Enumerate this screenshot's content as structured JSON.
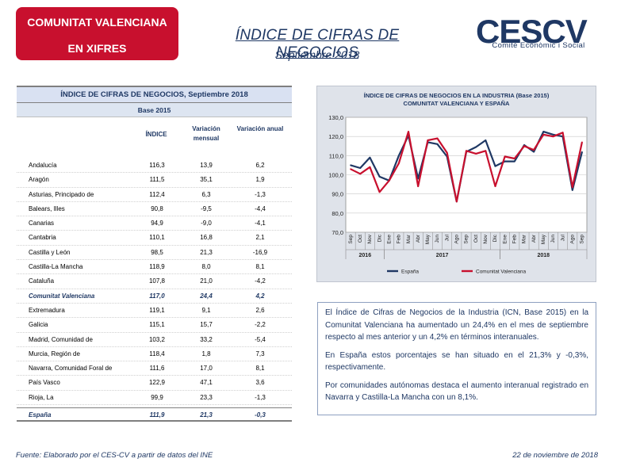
{
  "header": {
    "badge_line1": "COMUNITAT VALENCIANA",
    "badge_line2": "EN XIFRES",
    "title": "ÍNDICE DE CIFRAS DE NEGOCIOS",
    "subtitle": "Septiembre 2018",
    "logo_text": "CESCV",
    "logo_subtitle": "Comitè Econòmic i Social",
    "brand_blue": "#1f3864",
    "brand_red": "#c8102e"
  },
  "table": {
    "title": "ÍNDICE DE CIFRAS DE NEGOCIOS, Septiembre 2018",
    "base": "Base 2015",
    "col_index": "ÍNDICE",
    "col_monthly": "Variación mensual",
    "col_annual": "Variación anual",
    "rows": [
      {
        "name": "Andalucía",
        "index": "116,3",
        "monthly": "13,9",
        "annual": "6,2"
      },
      {
        "name": "Aragón",
        "index": "111,5",
        "monthly": "35,1",
        "annual": "1,9"
      },
      {
        "name": "Asturias, Principado de",
        "index": "112,4",
        "monthly": "6,3",
        "annual": "-1,3"
      },
      {
        "name": "Balears, Illes",
        "index": "90,8",
        "monthly": "-9,5",
        "annual": "-4,4"
      },
      {
        "name": "Canarias",
        "index": "94,9",
        "monthly": "-9,0",
        "annual": "-4,1"
      },
      {
        "name": "Cantabria",
        "index": "110,1",
        "monthly": "16,8",
        "annual": "2,1"
      },
      {
        "name": "Castilla y León",
        "index": "98,5",
        "monthly": "21,3",
        "annual": "-16,9"
      },
      {
        "name": "Castilla-La Mancha",
        "index": "118,9",
        "monthly": "8,0",
        "annual": "8,1"
      },
      {
        "name": "Cataluña",
        "index": "107,8",
        "monthly": "21,0",
        "annual": "-4,2"
      },
      {
        "name": "Comunitat Valenciana",
        "index": "117,0",
        "monthly": "24,4",
        "annual": "4,2"
      },
      {
        "name": "Extremadura",
        "index": "119,1",
        "monthly": "9,1",
        "annual": "2,6"
      },
      {
        "name": "Galicia",
        "index": "115,1",
        "monthly": "15,7",
        "annual": "-2,2"
      },
      {
        "name": "Madrid, Comunidad de",
        "index": "103,2",
        "monthly": "33,2",
        "annual": "-5,4"
      },
      {
        "name": "Murcia, Región de",
        "index": "118,4",
        "monthly": "1,8",
        "annual": "7,3"
      },
      {
        "name": "Navarra, Comunidad Foral de",
        "index": "111,6",
        "monthly": "17,0",
        "annual": "8,1"
      },
      {
        "name": "País Vasco",
        "index": "122,9",
        "monthly": "47,1",
        "annual": "3,6"
      },
      {
        "name": "Rioja, La",
        "index": "99,9",
        "monthly": "23,3",
        "annual": "-1,3"
      }
    ],
    "spain": {
      "name": "España",
      "index": "111,9",
      "monthly": "21,3",
      "annual": "-0,3"
    }
  },
  "chart_data": {
    "type": "line",
    "title": "ÍNDICE DE CIFRAS DE NEGOCIOS  EN LA INDUSTRIA (Base 2015)",
    "subtitle": "COMUNITAT  VALENCIANA  Y ESPAÑA",
    "x": [
      "Sep",
      "Oct",
      "Nov",
      "Dic",
      "Ene",
      "Feb",
      "Mar",
      "Abr",
      "May",
      "Jun",
      "Jul",
      "Ago",
      "Sep",
      "Oct",
      "Nov",
      "Dic",
      "Ene",
      "Feb",
      "Mar",
      "Abr",
      "May",
      "Jun",
      "Jul",
      "Ago",
      "Sep"
    ],
    "year_labels": [
      "2016",
      "2017",
      "2018"
    ],
    "year_spans": [
      [
        0,
        3
      ],
      [
        4,
        15
      ],
      [
        16,
        24
      ]
    ],
    "ylim": [
      70,
      130
    ],
    "yticks": [
      "70,0",
      "80,0",
      "90,0",
      "100,0",
      "110,0",
      "120,0",
      "130,0"
    ],
    "series": [
      {
        "name": "España",
        "color": "#1f3864",
        "values": [
          105,
          103.5,
          109,
          99,
          97,
          110,
          120.5,
          98,
          117,
          116,
          109.5,
          86,
          112,
          114.5,
          118,
          104.5,
          107,
          107,
          115.5,
          112,
          122.5,
          121,
          120,
          92,
          111.9
        ]
      },
      {
        "name": "Comunitat Valenciana",
        "color": "#c8102e",
        "values": [
          103,
          100.5,
          104,
          91,
          97,
          106,
          122.5,
          94,
          118,
          119,
          111.5,
          86,
          112.5,
          111,
          112.5,
          94,
          109.5,
          108.5,
          115,
          113,
          121,
          120,
          122,
          93.5,
          117
        ]
      }
    ]
  },
  "text": {
    "p1": "El Índice de Cifras de Negocios de la Industria (ICN, Base 2015) en la Comunitat Valenciana ha aumentado un 24,4% en el mes de septiembre respecto al mes anterior y un 4,2% en términos interanuales.",
    "p2": "En España estos porcentajes se han situado en el 21,3% y -0,3%, respectivamente.",
    "p3": "Por comunidades autónomas destaca el aumento interanual registrado en Navarra y Castilla-La Mancha con un 8,1%."
  },
  "footer": {
    "source": "Fuente: Elaborado por el CES-CV a partir de datos del INE",
    "date": "22 de noviembre de 2018"
  }
}
